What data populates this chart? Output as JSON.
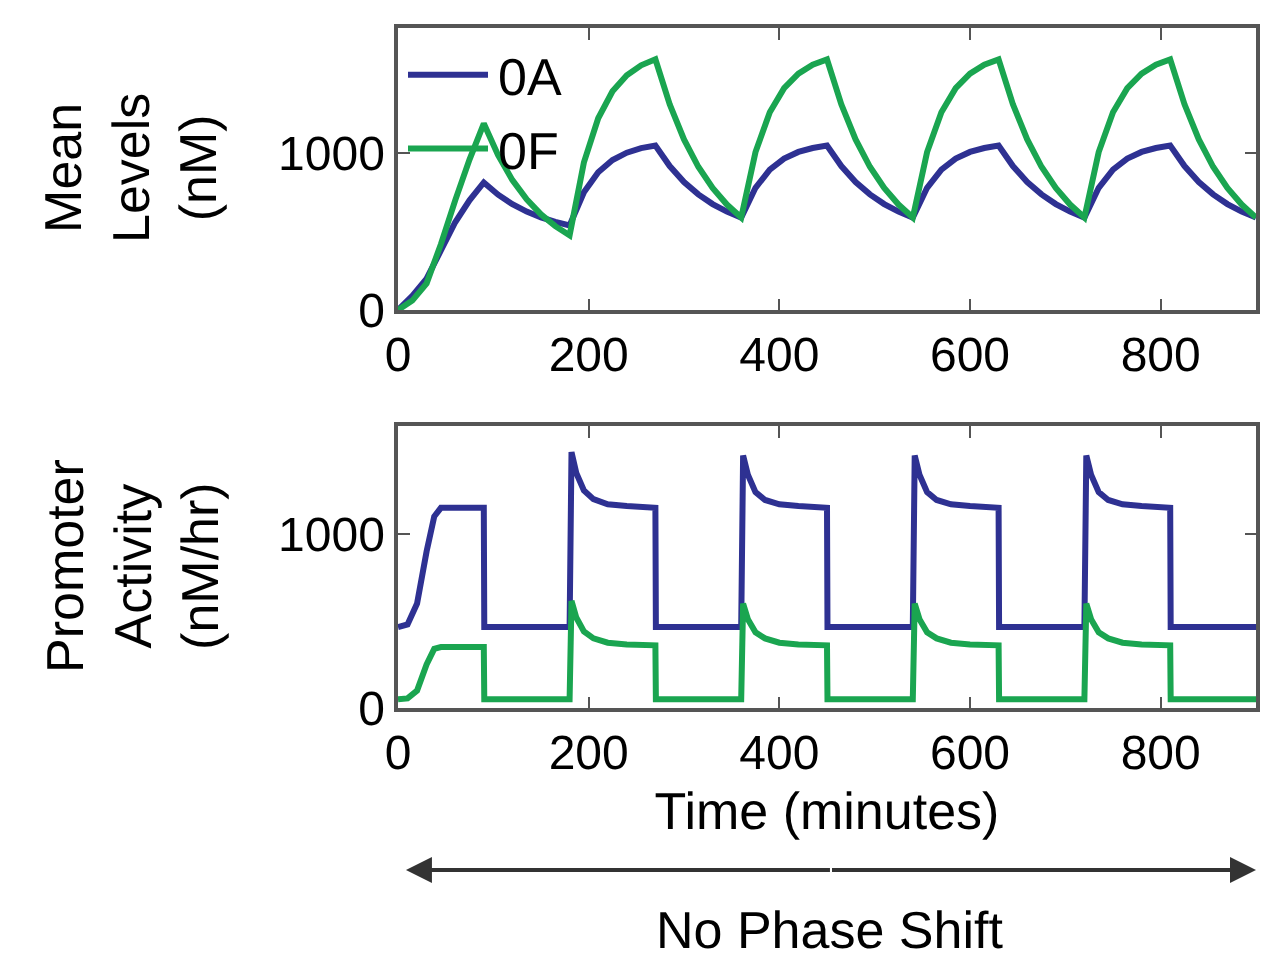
{
  "chart_data": [
    {
      "type": "line",
      "ylabel": "Mean Levels (nM)",
      "legend": "top left",
      "x": [
        0,
        15,
        30,
        45,
        60,
        75,
        90,
        105,
        120,
        135,
        150,
        165,
        180,
        195,
        210,
        225,
        240,
        255,
        270,
        285,
        300,
        315,
        330,
        345,
        360,
        375,
        390,
        405,
        420,
        435,
        450,
        465,
        480,
        495,
        510,
        525,
        540,
        555,
        570,
        585,
        600,
        615,
        630,
        645,
        660,
        675,
        690,
        705,
        720,
        735,
        750,
        765,
        780,
        795,
        810,
        825,
        840,
        855,
        870,
        885,
        900
      ],
      "series": [
        {
          "name": "0A",
          "color": "#2e3192",
          "values": [
            0,
            90,
            200,
            380,
            560,
            700,
            814,
            736,
            675,
            628,
            591,
            562,
            540,
            751,
            879,
            957,
            1004,
            1033,
            1050,
            919,
            817,
            738,
            676,
            628,
            590,
            780,
            896,
            966,
            1009,
            1034,
            1050,
            919,
            817,
            738,
            676,
            628,
            590,
            780,
            896,
            966,
            1009,
            1034,
            1050,
            919,
            817,
            738,
            676,
            628,
            590,
            780,
            896,
            966,
            1009,
            1034,
            1050,
            919,
            817,
            738,
            676,
            628,
            590
          ]
        },
        {
          "name": "0F",
          "color": "#1aa550",
          "values": [
            0,
            60,
            170,
            420,
            700,
            960,
            1190,
            988,
            829,
            706,
            610,
            535,
            477,
            942,
            1224,
            1396,
            1499,
            1562,
            1600,
            1313,
            1089,
            914,
            779,
            673,
            590,
            1008,
            1262,
            1416,
            1509,
            1566,
            1600,
            1313,
            1089,
            914,
            779,
            673,
            590,
            1008,
            1262,
            1416,
            1509,
            1566,
            1600,
            1313,
            1089,
            914,
            779,
            673,
            590,
            1008,
            1262,
            1416,
            1509,
            1566,
            1600,
            1313,
            1089,
            914,
            779,
            673,
            590
          ]
        }
      ],
      "xlim": [
        0,
        900
      ],
      "xticks": [
        0,
        200,
        400,
        600,
        800
      ],
      "ylim": [
        0,
        1800
      ],
      "yticks": [
        0,
        1000
      ]
    },
    {
      "type": "line",
      "ylabel": "Promoter Activity (nM/hr)",
      "xlabel": "Time (minutes)",
      "annotations": [
        "No Phase Shift"
      ],
      "x": [
        0,
        10,
        20,
        30,
        38,
        45,
        90,
        90.5,
        180,
        182,
        187,
        195,
        205,
        220,
        240,
        270,
        270.5,
        360,
        362,
        367,
        375,
        385,
        400,
        420,
        450,
        450.5,
        540,
        542,
        547,
        555,
        565,
        580,
        600,
        630,
        630.5,
        720,
        722,
        727,
        735,
        745,
        760,
        780,
        810,
        810.5,
        900
      ],
      "series": [
        {
          "color": "#2e3192",
          "values": [
            465,
            480,
            600,
            900,
            1100,
            1150,
            1150,
            465,
            465,
            1470,
            1350,
            1250,
            1200,
            1170,
            1160,
            1150,
            465,
            465,
            1450,
            1340,
            1240,
            1195,
            1170,
            1160,
            1150,
            465,
            465,
            1450,
            1340,
            1240,
            1195,
            1170,
            1160,
            1150,
            465,
            465,
            1450,
            1340,
            1240,
            1195,
            1170,
            1160,
            1150,
            465,
            465
          ]
        },
        {
          "color": "#1aa550",
          "values": [
            50,
            55,
            100,
            250,
            340,
            350,
            350,
            50,
            50,
            615,
            520,
            440,
            400,
            375,
            365,
            360,
            50,
            50,
            600,
            510,
            435,
            400,
            375,
            365,
            360,
            50,
            50,
            600,
            510,
            435,
            400,
            375,
            365,
            360,
            50,
            50,
            600,
            510,
            435,
            400,
            375,
            365,
            360,
            50,
            50
          ]
        }
      ],
      "xlim": [
        0,
        900
      ],
      "xticks": [
        0,
        200,
        400,
        600,
        800
      ],
      "ylim": [
        0,
        1620
      ],
      "yticks": [
        0,
        1000
      ]
    }
  ]
}
